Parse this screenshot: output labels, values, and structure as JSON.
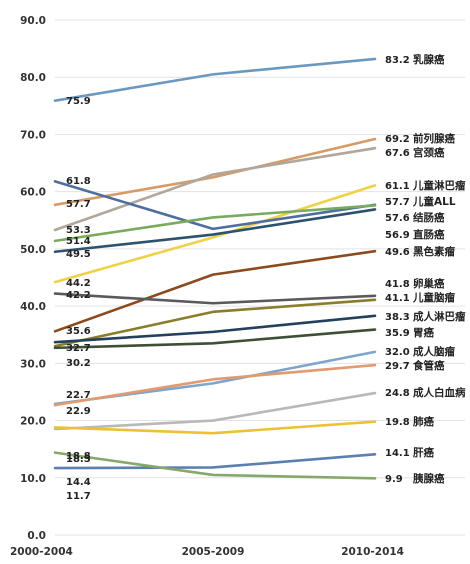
{
  "chart_data": {
    "type": "line",
    "x": [
      "2000-2004",
      "2005-2009",
      "2010-2014"
    ],
    "ylim": [
      0,
      90
    ],
    "yticks": [
      "0.0",
      "10.0",
      "20.0",
      "30.0",
      "40.0",
      "50.0",
      "60.0",
      "70.0",
      "80.0",
      "90.0"
    ],
    "grid": true,
    "series": [
      {
        "name": "乳腺癌",
        "values": [
          75.9,
          80.5,
          83.2
        ],
        "color": "#6b98bf",
        "start_label": "75.9",
        "end_label": "83.2"
      },
      {
        "name": "前列腺癌",
        "values": [
          57.7,
          62.5,
          69.2
        ],
        "color": "#d59a66",
        "start_label": "57.7",
        "end_label": "69.2"
      },
      {
        "name": "宫颈癌",
        "values": [
          53.3,
          63.0,
          67.6
        ],
        "color": "#b0a69a",
        "start_label": "53.3",
        "end_label": "67.6"
      },
      {
        "name": "儿童淋巴瘤",
        "values": [
          44.2,
          52.0,
          61.1
        ],
        "color": "#efd148",
        "start_label": "44.2",
        "end_label": "61.1"
      },
      {
        "name": "儿童ALL",
        "values": [
          61.8,
          53.5,
          57.7
        ],
        "color": "#4e6e9e",
        "start_label": "61.8",
        "end_label": "57.7"
      },
      {
        "name": "结肠癌",
        "values": [
          51.4,
          55.5,
          57.6
        ],
        "color": "#79ab5c",
        "start_label": "51.4",
        "end_label": "57.6"
      },
      {
        "name": "直肠癌",
        "values": [
          49.5,
          52.5,
          56.9
        ],
        "color": "#2d5270",
        "start_label": "49.5",
        "end_label": "56.9"
      },
      {
        "name": "黑色素瘤",
        "values": [
          35.6,
          45.5,
          49.6
        ],
        "color": "#8d4a1f",
        "start_label": "35.6",
        "end_label": "49.6"
      },
      {
        "name": "卵巢癌",
        "values": [
          42.2,
          40.5,
          41.8
        ],
        "color": "#5a5a5a",
        "start_label": "42.2",
        "end_label": "41.8"
      },
      {
        "name": "儿童脑瘤",
        "values": [
          33.0,
          39.0,
          41.1
        ],
        "color": "#8b7d2a",
        "start_label": "",
        "end_label": "41.1"
      },
      {
        "name": "成人淋巴瘤",
        "values": [
          33.7,
          35.5,
          38.3
        ],
        "color": "#23405e",
        "start_label": "",
        "end_label": "38.3"
      },
      {
        "name": "胃癌",
        "values": [
          32.7,
          33.5,
          35.9
        ],
        "color": "#3f4f36",
        "start_label": "32.7",
        "end_label": "35.9"
      },
      {
        "name": "成人脑瘤",
        "values": [
          22.9,
          26.5,
          32.0
        ],
        "color": "#7ca6cc",
        "start_label": "22.9",
        "end_label": "32.0"
      },
      {
        "name": "食管癌",
        "values": [
          22.7,
          27.2,
          29.7
        ],
        "color": "#e29a6e",
        "start_label": "22.7",
        "end_label": "29.7"
      },
      {
        "name": "成人白血病",
        "values": [
          18.5,
          20.0,
          24.8
        ],
        "color": "#b8b8b8",
        "start_label": "",
        "end_label": "24.8"
      },
      {
        "name": "肺癌",
        "values": [
          18.8,
          17.8,
          19.8
        ],
        "color": "#ecc233",
        "start_label": "18.8",
        "end_label": "19.8"
      },
      {
        "name": "肝癌",
        "values": [
          11.7,
          11.8,
          14.1
        ],
        "color": "#5b80b0",
        "start_label": "11.7",
        "end_label": "14.1"
      },
      {
        "name": "胰腺癌",
        "values": [
          14.4,
          10.5,
          9.9
        ],
        "color": "#86a86a",
        "start_label": "14.4",
        "end_label": "9.9"
      }
    ],
    "extra_start_labels": [
      "30.2",
      "18.5"
    ]
  }
}
